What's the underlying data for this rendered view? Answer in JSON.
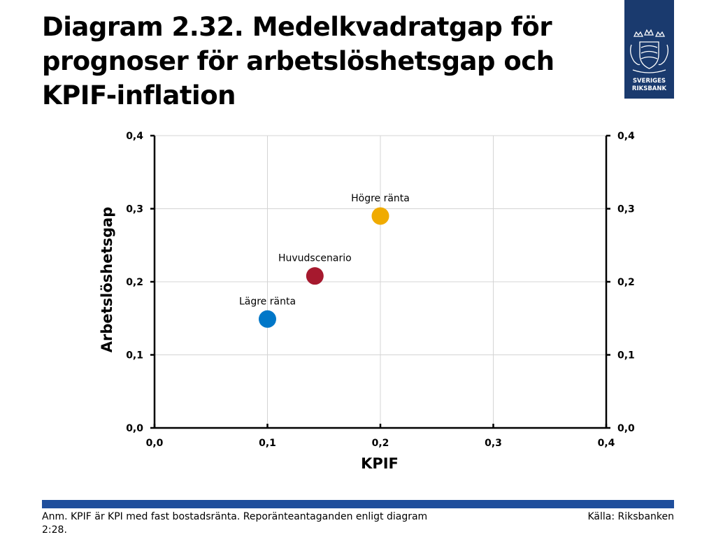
{
  "title": "Diagram 2.32. Medelkvadratgap för prognoser för arbetslöshetsgap och KPIF-inflation",
  "logo": {
    "line1": "SVERIGES",
    "line2": "RIKSBANK",
    "color": "#1a3a6e"
  },
  "chart_data": {
    "type": "scatter",
    "xlabel": "KPIF",
    "ylabel": "Arbetslöshetsgap",
    "xlim": [
      0,
      0.4
    ],
    "ylim": [
      0,
      0.4
    ],
    "x_ticks": [
      "0,0",
      "0,1",
      "0,2",
      "0,3",
      "0,4"
    ],
    "y_ticks": [
      "0,0",
      "0,1",
      "0,2",
      "0,3",
      "0,4"
    ],
    "grid": true,
    "points": [
      {
        "label": "Högre ränta",
        "x": 0.2,
        "y": 0.29,
        "color": "#f0ab00"
      },
      {
        "label": "Huvudscenario",
        "x": 0.142,
        "y": 0.208,
        "color": "#a6192e"
      },
      {
        "label": "Lägre ränta",
        "x": 0.1,
        "y": 0.149,
        "color": "#0077c8"
      }
    ]
  },
  "footer": {
    "note": "Anm. KPIF är KPI med fast bostadsränta. Reporänteantaganden enligt diagram 2:28.",
    "source": "Källa: Riksbanken",
    "bar_color": "#1f4e9c"
  }
}
